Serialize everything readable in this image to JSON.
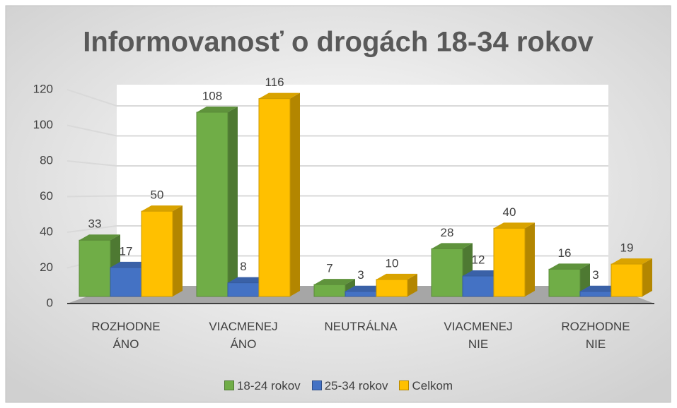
{
  "chart_data": {
    "type": "bar3d",
    "title": "Informovanosť o drogách 18-34 rokov",
    "categories": [
      "ROZHODNE ÁNO",
      "VIACMENEJ ÁNO",
      "NEUTRÁLNA",
      "VIACMENEJ NIE",
      "ROZHODNE NIE"
    ],
    "series": [
      {
        "name": "18-24 rokov",
        "color": "#70ad47",
        "values": [
          33,
          108,
          7,
          28,
          16
        ]
      },
      {
        "name": "25-34 rokov",
        "color": "#4472c4",
        "values": [
          17,
          8,
          3,
          12,
          3
        ]
      },
      {
        "name": "Celkom",
        "color": "#ffc000",
        "values": [
          50,
          116,
          10,
          40,
          19
        ]
      }
    ],
    "ylim": [
      0,
      120
    ],
    "yticks": [
      0,
      20,
      40,
      60,
      80,
      100,
      120
    ],
    "grid": true,
    "legend": "bottom"
  }
}
